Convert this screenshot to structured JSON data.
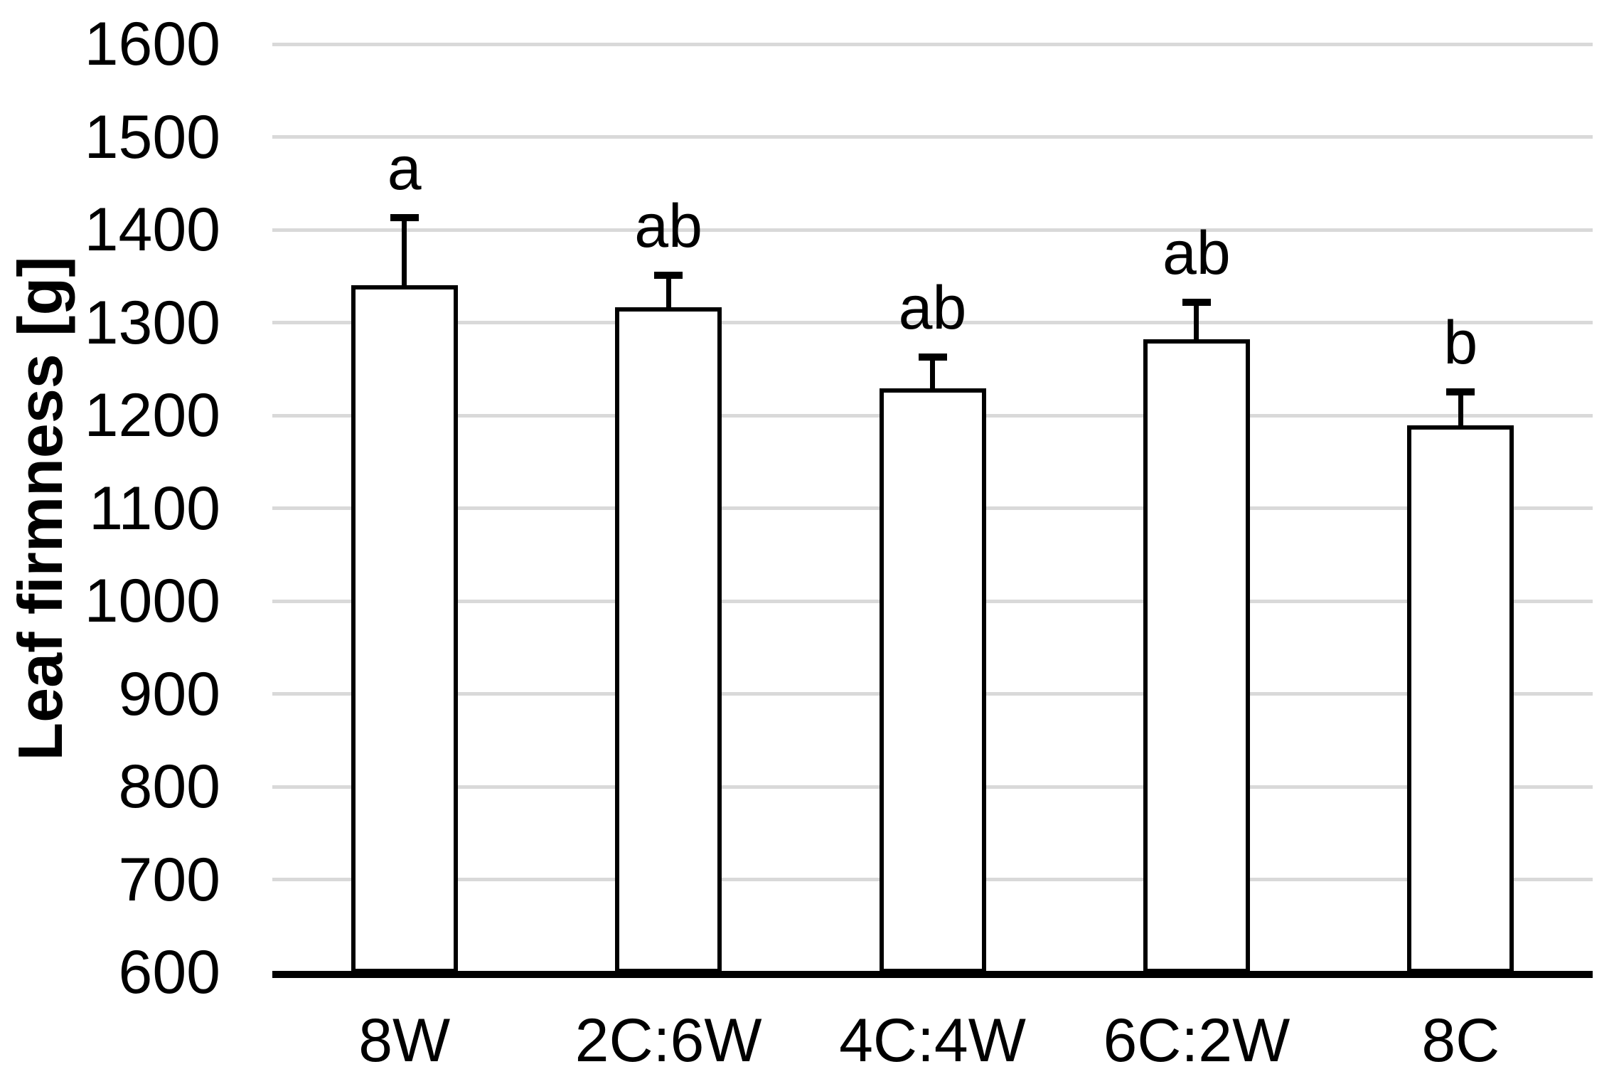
{
  "chart_data": {
    "type": "bar",
    "title": "",
    "xlabel": "",
    "ylabel": "Leaf firmness [g]",
    "categories": [
      "8W",
      "2C:6W",
      "4C:4W",
      "6C:2W",
      "8C"
    ],
    "series": [
      {
        "name": "Leaf firmness",
        "values": [
          1338,
          1314,
          1227,
          1280,
          1187
        ],
        "error_upper": [
          75,
          37,
          36,
          42,
          38
        ],
        "sig_letters": [
          "a",
          "ab",
          "ab",
          "ab",
          "b"
        ]
      }
    ],
    "ylim": [
      600,
      1600
    ],
    "ytick_step": 100,
    "yticks": [
      600,
      700,
      800,
      900,
      1000,
      1100,
      1200,
      1300,
      1400,
      1500,
      1600
    ],
    "grid": true,
    "legend": false,
    "bar_fill": "#ffffff",
    "bar_border": "#000000"
  },
  "style": {
    "background": "#ffffff",
    "text_color": "#000000",
    "gridline_color": "#d9d9d9",
    "axis_color": "#000000",
    "error_bar_color": "#000000"
  }
}
